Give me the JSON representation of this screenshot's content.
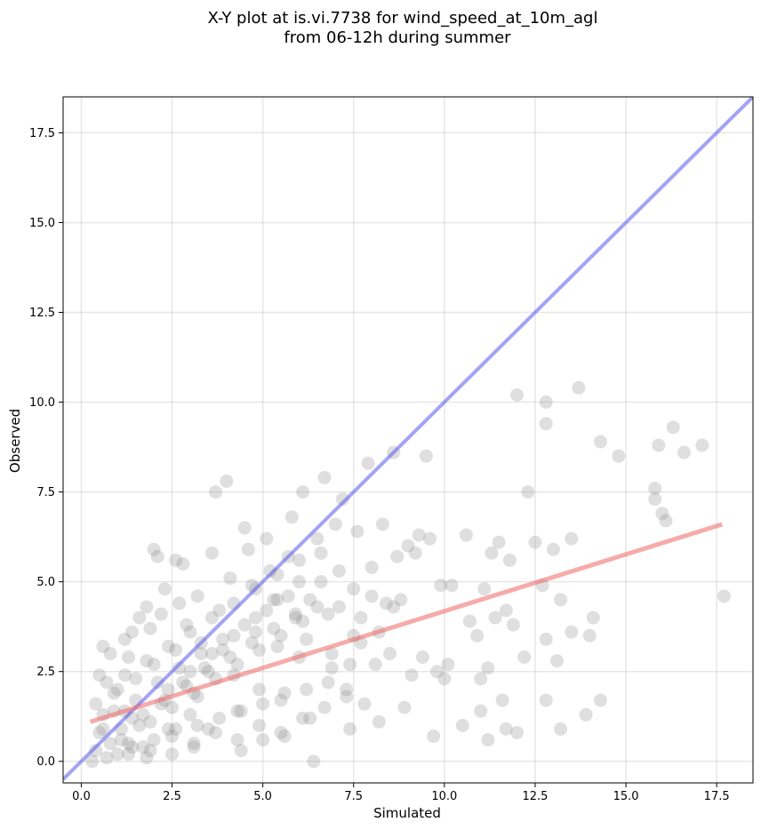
{
  "chart_data": {
    "type": "scatter",
    "title_lines": [
      "X-Y plot at is.vi.7738 for wind_speed_at_10m_agl",
      "from 06-12h during summer"
    ],
    "xlabel": "Simulated",
    "ylabel": "Observed",
    "xlim": [
      -0.5,
      18.5
    ],
    "ylim": [
      -0.6,
      18.5
    ],
    "x_ticks": [
      0.0,
      2.5,
      5.0,
      7.5,
      10.0,
      12.5,
      15.0,
      17.5
    ],
    "y_ticks": [
      0.0,
      2.5,
      5.0,
      7.5,
      10.0,
      12.5,
      15.0,
      17.5
    ],
    "x_tick_labels": [
      "0.0",
      "2.5",
      "5.0",
      "7.5",
      "10.0",
      "12.5",
      "15.0",
      "17.5"
    ],
    "y_tick_labels": [
      "0.0",
      "2.5",
      "5.0",
      "7.5",
      "10.0",
      "12.5",
      "15.0",
      "17.5"
    ],
    "grid": true,
    "point_color": "#808080",
    "one_to_one_color": "#6666ee",
    "fit_color": "#ee6666",
    "one_to_one_line": {
      "x": [
        -0.5,
        18.5
      ],
      "y": [
        -0.5,
        18.5
      ]
    },
    "fit_line": {
      "x": [
        0.25,
        17.65
      ],
      "y": [
        1.1,
        6.6
      ]
    },
    "points": [
      [
        0.3,
        0.0
      ],
      [
        0.4,
        0.3
      ],
      [
        0.5,
        0.8
      ],
      [
        0.6,
        1.3
      ],
      [
        0.4,
        1.6
      ],
      [
        0.5,
        2.4
      ],
      [
        0.7,
        2.2
      ],
      [
        0.6,
        3.2
      ],
      [
        0.8,
        3.0
      ],
      [
        0.9,
        1.9
      ],
      [
        1.0,
        0.2
      ],
      [
        1.1,
        0.6
      ],
      [
        1.2,
        1.4
      ],
      [
        1.0,
        2.0
      ],
      [
        1.3,
        2.9
      ],
      [
        1.2,
        3.4
      ],
      [
        1.4,
        3.6
      ],
      [
        1.5,
        2.3
      ],
      [
        1.6,
        1.0
      ],
      [
        1.7,
        0.4
      ],
      [
        1.8,
        0.1
      ],
      [
        1.6,
        4.0
      ],
      [
        1.8,
        4.3
      ],
      [
        1.9,
        3.7
      ],
      [
        2.0,
        5.9
      ],
      [
        2.1,
        5.7
      ],
      [
        2.2,
        4.1
      ],
      [
        2.3,
        4.8
      ],
      [
        2.0,
        2.7
      ],
      [
        2.2,
        1.6
      ],
      [
        2.4,
        0.9
      ],
      [
        2.5,
        0.2
      ],
      [
        2.6,
        5.6
      ],
      [
        2.8,
        5.5
      ],
      [
        2.7,
        4.4
      ],
      [
        2.9,
        3.8
      ],
      [
        2.6,
        3.1
      ],
      [
        2.8,
        2.2
      ],
      [
        3.0,
        1.3
      ],
      [
        3.1,
        0.5
      ],
      [
        3.2,
        4.6
      ],
      [
        3.3,
        3.3
      ],
      [
        3.4,
        2.6
      ],
      [
        3.2,
        1.8
      ],
      [
        3.5,
        0.9
      ],
      [
        3.6,
        5.8
      ],
      [
        3.7,
        7.5
      ],
      [
        3.8,
        4.2
      ],
      [
        3.9,
        3.1
      ],
      [
        4.0,
        7.8
      ],
      [
        4.1,
        5.1
      ],
      [
        4.2,
        2.4
      ],
      [
        4.3,
        1.4
      ],
      [
        4.4,
        0.3
      ],
      [
        4.5,
        6.5
      ],
      [
        4.6,
        5.9
      ],
      [
        4.7,
        4.9
      ],
      [
        4.8,
        3.6
      ],
      [
        4.9,
        2.0
      ],
      [
        5.0,
        0.6
      ],
      [
        5.1,
        6.2
      ],
      [
        5.2,
        5.3
      ],
      [
        5.3,
        4.5
      ],
      [
        5.4,
        3.2
      ],
      [
        5.5,
        1.7
      ],
      [
        5.6,
        0.7
      ],
      [
        5.7,
        5.7
      ],
      [
        5.8,
        6.8
      ],
      [
        5.9,
        4.0
      ],
      [
        6.0,
        2.9
      ],
      [
        6.1,
        7.5
      ],
      [
        6.2,
        3.4
      ],
      [
        6.3,
        1.2
      ],
      [
        6.4,
        0.0
      ],
      [
        6.5,
        6.2
      ],
      [
        6.6,
        5.0
      ],
      [
        6.7,
        7.9
      ],
      [
        6.8,
        4.1
      ],
      [
        6.9,
        2.6
      ],
      [
        7.0,
        6.6
      ],
      [
        7.1,
        5.3
      ],
      [
        7.2,
        7.3
      ],
      [
        7.3,
        2.0
      ],
      [
        7.4,
        0.9
      ],
      [
        7.5,
        4.8
      ],
      [
        7.6,
        6.4
      ],
      [
        7.7,
        3.3
      ],
      [
        7.8,
        1.6
      ],
      [
        7.9,
        8.3
      ],
      [
        8.0,
        5.4
      ],
      [
        8.1,
        2.7
      ],
      [
        8.2,
        1.1
      ],
      [
        8.3,
        6.6
      ],
      [
        8.4,
        4.4
      ],
      [
        8.5,
        3.0
      ],
      [
        8.6,
        8.6
      ],
      [
        8.7,
        5.7
      ],
      [
        8.8,
        4.5
      ],
      [
        8.9,
        1.5
      ],
      [
        9.0,
        6.0
      ],
      [
        9.1,
        2.4
      ],
      [
        9.2,
        5.8
      ],
      [
        9.3,
        6.3
      ],
      [
        9.4,
        2.9
      ],
      [
        9.5,
        8.5
      ],
      [
        9.6,
        6.2
      ],
      [
        9.7,
        0.7
      ],
      [
        9.8,
        2.5
      ],
      [
        9.9,
        4.9
      ],
      [
        10.0,
        2.3
      ],
      [
        10.1,
        2.7
      ],
      [
        10.2,
        4.9
      ],
      [
        10.5,
        1.0
      ],
      [
        10.6,
        6.3
      ],
      [
        10.7,
        3.9
      ],
      [
        10.9,
        3.5
      ],
      [
        11.0,
        2.3
      ],
      [
        11.0,
        1.4
      ],
      [
        11.1,
        4.8
      ],
      [
        11.2,
        0.6
      ],
      [
        11.2,
        2.6
      ],
      [
        11.3,
        5.8
      ],
      [
        11.4,
        4.0
      ],
      [
        11.5,
        6.1
      ],
      [
        11.6,
        1.7
      ],
      [
        11.7,
        0.9
      ],
      [
        11.7,
        4.2
      ],
      [
        11.8,
        5.6
      ],
      [
        11.9,
        3.8
      ],
      [
        12.0,
        0.8
      ],
      [
        12.0,
        10.2
      ],
      [
        12.2,
        2.9
      ],
      [
        12.3,
        7.5
      ],
      [
        12.5,
        6.1
      ],
      [
        12.7,
        4.9
      ],
      [
        12.8,
        10.0
      ],
      [
        12.8,
        9.4
      ],
      [
        12.8,
        1.7
      ],
      [
        12.8,
        3.4
      ],
      [
        13.0,
        5.9
      ],
      [
        13.1,
        2.8
      ],
      [
        13.2,
        0.9
      ],
      [
        13.2,
        4.5
      ],
      [
        13.5,
        6.2
      ],
      [
        13.5,
        3.6
      ],
      [
        13.7,
        10.4
      ],
      [
        13.9,
        1.3
      ],
      [
        14.0,
        3.5
      ],
      [
        14.1,
        4.0
      ],
      [
        14.3,
        8.9
      ],
      [
        14.3,
        1.7
      ],
      [
        14.8,
        8.5
      ],
      [
        15.8,
        7.6
      ],
      [
        15.8,
        7.3
      ],
      [
        15.9,
        8.8
      ],
      [
        16.0,
        6.9
      ],
      [
        16.1,
        6.7
      ],
      [
        16.3,
        9.3
      ],
      [
        16.6,
        8.6
      ],
      [
        17.1,
        8.8
      ],
      [
        17.7,
        4.6
      ],
      [
        0.8,
        0.5
      ],
      [
        1.4,
        1.2
      ],
      [
        2.4,
        2.0
      ],
      [
        3.0,
        2.5
      ],
      [
        3.6,
        3.0
      ],
      [
        4.2,
        3.5
      ],
      [
        4.8,
        4.0
      ],
      [
        5.4,
        4.5
      ],
      [
        6.0,
        5.0
      ],
      [
        0.6,
        0.9
      ],
      [
        1.3,
        0.2
      ],
      [
        1.9,
        1.1
      ],
      [
        2.5,
        1.5
      ],
      [
        3.1,
        1.9
      ],
      [
        3.7,
        2.3
      ],
      [
        4.3,
        2.7
      ],
      [
        4.9,
        3.1
      ],
      [
        5.5,
        3.5
      ],
      [
        6.1,
        3.9
      ],
      [
        0.9,
        1.4
      ],
      [
        1.5,
        1.7
      ],
      [
        2.1,
        2.2
      ],
      [
        2.7,
        2.6
      ],
      [
        3.3,
        3.0
      ],
      [
        3.9,
        3.4
      ],
      [
        4.5,
        3.8
      ],
      [
        5.1,
        4.2
      ],
      [
        5.7,
        4.6
      ],
      [
        6.3,
        4.5
      ],
      [
        1.1,
        0.9
      ],
      [
        1.7,
        1.3
      ],
      [
        2.3,
        1.7
      ],
      [
        2.9,
        2.1
      ],
      [
        3.5,
        2.5
      ],
      [
        4.1,
        2.9
      ],
      [
        4.7,
        3.3
      ],
      [
        5.3,
        3.7
      ],
      [
        5.9,
        4.1
      ],
      [
        6.5,
        4.3
      ],
      [
        1.2,
        2.4
      ],
      [
        1.8,
        2.8
      ],
      [
        2.4,
        3.2
      ],
      [
        3.0,
        3.6
      ],
      [
        3.6,
        4.0
      ],
      [
        4.2,
        4.4
      ],
      [
        4.8,
        4.8
      ],
      [
        5.4,
        5.2
      ],
      [
        6.0,
        5.6
      ],
      [
        6.6,
        5.8
      ],
      [
        0.7,
        0.1
      ],
      [
        1.3,
        0.5
      ],
      [
        1.9,
        0.3
      ],
      [
        2.5,
        0.7
      ],
      [
        3.1,
        0.4
      ],
      [
        3.7,
        0.8
      ],
      [
        4.3,
        0.6
      ],
      [
        4.9,
        1.0
      ],
      [
        5.5,
        0.8
      ],
      [
        6.1,
        1.2
      ],
      [
        6.7,
        1.5
      ],
      [
        7.3,
        1.8
      ],
      [
        6.9,
        3.0
      ],
      [
        7.5,
        3.5
      ],
      [
        7.1,
        4.3
      ],
      [
        7.7,
        4.0
      ],
      [
        8.0,
        4.6
      ],
      [
        8.6,
        4.3
      ],
      [
        8.2,
        3.6
      ],
      [
        7.4,
        2.7
      ],
      [
        6.8,
        2.2
      ],
      [
        6.2,
        2.0
      ],
      [
        5.6,
        1.9
      ],
      [
        5.0,
        1.6
      ],
      [
        4.4,
        1.4
      ],
      [
        3.8,
        1.2
      ],
      [
        3.2,
        1.0
      ],
      [
        2.6,
        0.9
      ],
      [
        2.0,
        0.6
      ],
      [
        1.4,
        0.4
      ]
    ]
  }
}
